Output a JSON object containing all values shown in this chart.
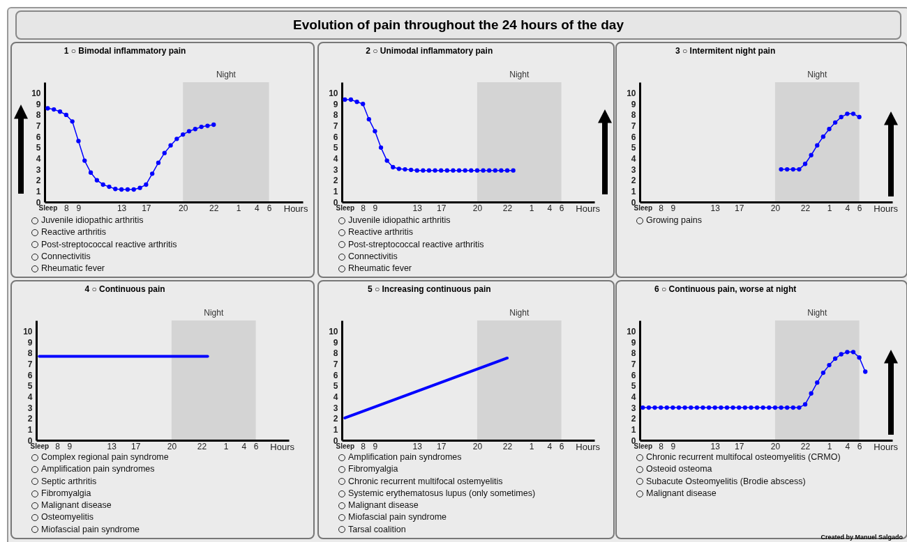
{
  "chart_data": [
    {
      "type": "line",
      "title": "1 ○ Bimodal inflammatory pain",
      "xlabel": "Hours",
      "color": "#0000ff",
      "marker": "circle",
      "categories": [
        "Sleep",
        null,
        null,
        "8",
        null,
        "9",
        null,
        null,
        null,
        null,
        null,
        null,
        "13",
        null,
        null,
        null,
        "17",
        null,
        null,
        null,
        null,
        null,
        "20",
        null,
        null,
        null,
        null,
        "22",
        null,
        null,
        null,
        "1",
        null,
        null,
        "4",
        null,
        "6",
        null,
        null,
        null,
        null,
        null
      ],
      "values": [
        8.6,
        8.5,
        8.3,
        8.0,
        7.4,
        5.6,
        3.8,
        2.7,
        2.0,
        1.6,
        1.4,
        1.2,
        1.15,
        1.15,
        1.15,
        1.3,
        1.6,
        2.6,
        3.6,
        4.5,
        5.2,
        5.8,
        6.2,
        6.5,
        6.7,
        6.9,
        7.0,
        7.1,
        null,
        null,
        null,
        null,
        null,
        null,
        null,
        null,
        null,
        null,
        null,
        null,
        null,
        null
      ],
      "ylim": [
        0,
        11
      ],
      "yticks": [
        0,
        1,
        2,
        3,
        4,
        5,
        6,
        7,
        8,
        9,
        10
      ],
      "bands": [
        {
          "axis": "x",
          "from": "20",
          "to": "6",
          "label": "Night",
          "color": "#d4d4d4"
        }
      ],
      "annotations": [
        "Juvenile idiopathic arthritis",
        "Reactive arthritis",
        "Post-streptococcal reactive arthritis",
        "Connectivitis",
        "Rheumatic fever"
      ]
    },
    {
      "type": "line",
      "title": "Evolution of pain throughout the 24 hours of the day",
      "subtitle": "2 ○ Unimodal inflammatory pain",
      "xlabel": "Hours",
      "color": "#0000ff",
      "marker": "circle",
      "categories": [
        "Sleep",
        null,
        null,
        "8",
        null,
        "9",
        null,
        null,
        null,
        null,
        null,
        null,
        "13",
        null,
        null,
        null,
        "17",
        null,
        null,
        null,
        null,
        null,
        "20",
        null,
        null,
        null,
        null,
        "22",
        null,
        null,
        null,
        "1",
        null,
        null,
        "4",
        null,
        "6",
        null,
        null,
        null,
        null,
        null
      ],
      "values": [
        9.4,
        9.4,
        9.2,
        9.0,
        7.6,
        6.5,
        5.0,
        3.8,
        3.2,
        3.05,
        3.0,
        2.95,
        2.9,
        2.9,
        2.9,
        2.9,
        2.9,
        2.9,
        2.9,
        2.9,
        2.9,
        2.9,
        2.9,
        2.9,
        2.9,
        2.9,
        2.9,
        2.9,
        2.9,
        null,
        null,
        null,
        null,
        null,
        null,
        null,
        null,
        null,
        null,
        null,
        null,
        null
      ],
      "ylim": [
        0,
        11
      ],
      "yticks": [
        0,
        1,
        2,
        3,
        4,
        5,
        6,
        7,
        8,
        9,
        10
      ],
      "bands": [
        {
          "axis": "x",
          "from": "20",
          "to": "6",
          "label": "Night",
          "color": "#d4d4d4"
        }
      ],
      "annotations": [
        "Juvenile idiopathic arthritis",
        "Reactive arthritis",
        "Post-streptococcal reactive arthritis",
        "Connectivitis",
        "Rheumatic fever"
      ]
    },
    {
      "type": "line",
      "title": "3 ○ Intermitent night pain",
      "xlabel": "Hours",
      "color": "#0000ff",
      "marker": "circle",
      "categories": [
        "Sleep",
        null,
        null,
        "8",
        null,
        "9",
        null,
        null,
        null,
        null,
        null,
        null,
        "13",
        null,
        null,
        null,
        "17",
        null,
        null,
        null,
        null,
        null,
        "20",
        null,
        null,
        null,
        null,
        "22",
        null,
        null,
        null,
        "1",
        null,
        null,
        "4",
        null,
        "6",
        null,
        null,
        null,
        null,
        null
      ],
      "values": [
        null,
        null,
        null,
        null,
        null,
        null,
        null,
        null,
        null,
        null,
        null,
        null,
        null,
        null,
        null,
        null,
        null,
        null,
        null,
        null,
        null,
        null,
        null,
        3.0,
        3.0,
        3.0,
        3.0,
        3.5,
        4.3,
        5.2,
        6.0,
        6.7,
        7.3,
        7.8,
        8.1,
        8.1,
        7.8,
        null,
        null,
        null,
        null,
        null
      ],
      "ylim": [
        0,
        11
      ],
      "yticks": [
        0,
        1,
        2,
        3,
        4,
        5,
        6,
        7,
        8,
        9,
        10
      ],
      "bands": [
        {
          "axis": "x",
          "from": "20",
          "to": "6",
          "label": "Night",
          "color": "#d4d4d4"
        }
      ],
      "annotations": [
        "Growing pains"
      ]
    },
    {
      "type": "line",
      "title": "4 ○ Continuous pain",
      "xlabel": "Hours",
      "color": "#0000ff",
      "categories": [
        "Sleep",
        null,
        null,
        "8",
        null,
        "9",
        null,
        null,
        null,
        null,
        null,
        null,
        "13",
        null,
        null,
        null,
        "17",
        null,
        null,
        null,
        null,
        null,
        "20",
        null,
        null,
        null,
        null,
        "22",
        null,
        null,
        null,
        "1",
        null,
        null,
        "4",
        null,
        "6",
        null,
        null,
        null,
        null,
        null
      ],
      "values": [
        7.7,
        null,
        null,
        null,
        null,
        null,
        null,
        null,
        null,
        null,
        null,
        null,
        null,
        null,
        null,
        null,
        null,
        null,
        null,
        null,
        null,
        null,
        null,
        null,
        null,
        null,
        null,
        null,
        7.7,
        null,
        null,
        null,
        null,
        null,
        null,
        null,
        null,
        null,
        null,
        null,
        null,
        null
      ],
      "ylim": [
        0,
        11
      ],
      "yticks": [
        0,
        1,
        2,
        3,
        4,
        5,
        6,
        7,
        8,
        9,
        10
      ],
      "bands": [
        {
          "axis": "x",
          "from": "20",
          "to": "6",
          "label": "Night",
          "color": "#d4d4d4"
        }
      ],
      "annotations": [
        "Complex regional pain syndrome",
        "Amplification pain syndromes",
        "Septic arthritis",
        "Fibromyalgia",
        "Malignant disease",
        "Osteomyelitis",
        "Miofascial pain syndrome"
      ]
    },
    {
      "type": "line",
      "title": "5 ○ Increasing continuous pain",
      "xlabel": "Hours",
      "color": "#0000ff",
      "categories": [
        "Sleep",
        null,
        null,
        "8",
        null,
        "9",
        null,
        null,
        null,
        null,
        null,
        null,
        "13",
        null,
        null,
        null,
        "17",
        null,
        null,
        null,
        null,
        null,
        "20",
        null,
        null,
        null,
        null,
        "22",
        null,
        null,
        null,
        "1",
        null,
        null,
        "4",
        null,
        "6",
        null,
        null,
        null,
        null,
        null
      ],
      "values": [
        2.05,
        null,
        null,
        null,
        null,
        null,
        null,
        null,
        null,
        null,
        null,
        null,
        null,
        null,
        null,
        null,
        null,
        null,
        null,
        null,
        null,
        null,
        null,
        null,
        null,
        null,
        null,
        7.55,
        null,
        null,
        null,
        null,
        null,
        null,
        null,
        null,
        null,
        null,
        null,
        null,
        null,
        null
      ],
      "ylim": [
        0,
        11
      ],
      "yticks": [
        0,
        1,
        2,
        3,
        4,
        5,
        6,
        7,
        8,
        9,
        10
      ],
      "bands": [
        {
          "axis": "x",
          "from": "20",
          "to": "6",
          "label": "Night",
          "color": "#d4d4d4"
        }
      ],
      "annotations": [
        "Amplification pain syndromes",
        "Fibromyalgia",
        "Chronic recurrent multifocal ostemyelitis",
        "Systemic erythematosus lupus (only sometimes)",
        "Malignant disease",
        "Miofascial pain syndrome",
        "Tarsal coalition"
      ]
    },
    {
      "type": "line",
      "title": "6 ○ Continuous pain, worse at night",
      "xlabel": "Hours",
      "color": "#0000ff",
      "marker": "circle",
      "categories": [
        "Sleep",
        null,
        null,
        "8",
        null,
        "9",
        null,
        null,
        null,
        null,
        null,
        null,
        "13",
        null,
        null,
        null,
        "17",
        null,
        null,
        null,
        null,
        null,
        "20",
        null,
        null,
        null,
        null,
        "22",
        null,
        null,
        null,
        "1",
        null,
        null,
        "4",
        null,
        "6",
        null,
        null,
        null,
        null,
        null
      ],
      "values": [
        3.0,
        3.0,
        3.0,
        3.0,
        3.0,
        3.0,
        3.0,
        3.0,
        3.0,
        3.0,
        3.0,
        3.0,
        3.0,
        3.0,
        3.0,
        3.0,
        3.0,
        3.0,
        3.0,
        3.0,
        3.0,
        3.0,
        3.0,
        3.0,
        3.0,
        3.0,
        3.0,
        3.3,
        4.3,
        5.3,
        6.2,
        6.9,
        7.5,
        7.9,
        8.1,
        8.1,
        7.6,
        6.3,
        null,
        null,
        null,
        null
      ],
      "ylim": [
        0,
        11
      ],
      "yticks": [
        0,
        1,
        2,
        3,
        4,
        5,
        6,
        7,
        8,
        9,
        10
      ],
      "bands": [
        {
          "axis": "x",
          "from": "20",
          "to": "6",
          "label": "Night",
          "color": "#d4d4d4"
        }
      ],
      "annotations": [
        "Chronic recurrent multifocal osteomyelitis (CRMO)",
        "Osteoid osteoma",
        "Subacute Osteomyelitis (Brodie abscess)",
        "Malignant disease",
        {
          "text": "Created by Manuel Salgado"
        }
      ]
    }
  ]
}
